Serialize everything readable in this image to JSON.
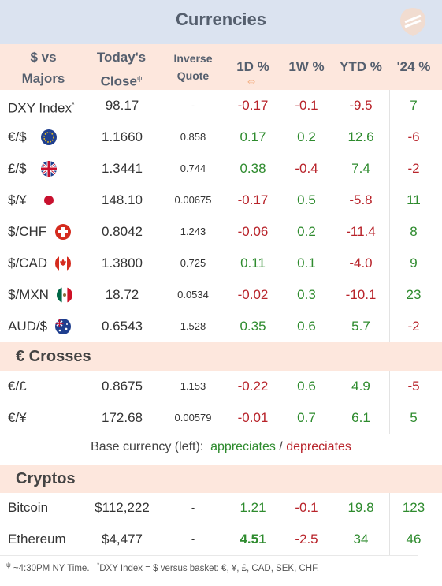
{
  "title": "Currencies",
  "headers": {
    "pair_line1": "$ vs",
    "pair_line2": "Majors",
    "close_line1": "Today's",
    "close_line2": "Close",
    "close_mark": "ψ",
    "inverse_line1": "Inverse",
    "inverse_line2": "Quote",
    "d1": "1D %",
    "w1": "1W %",
    "ytd": "YTD %",
    "y24": "'24 %",
    "sort_icon": "⇔"
  },
  "majors": [
    {
      "label": "DXY Index",
      "mark": "*",
      "flag": "",
      "close": "98.17",
      "inverse": "-",
      "d1": "-0.17",
      "w1": "-0.1",
      "ytd": "-9.5",
      "y24": "7"
    },
    {
      "label": "€/$",
      "mark": "",
      "flag": "eu-flag-icon",
      "close": "1.1660",
      "inverse": "0.858",
      "d1": "0.17",
      "w1": "0.2",
      "ytd": "12.6",
      "y24": "-6"
    },
    {
      "label": "£/$",
      "mark": "",
      "flag": "uk-flag-icon",
      "close": "1.3441",
      "inverse": "0.744",
      "d1": "0.38",
      "w1": "-0.4",
      "ytd": "7.4",
      "y24": "-2"
    },
    {
      "label": "$/¥",
      "mark": "",
      "flag": "japan-flag-icon",
      "close": "148.10",
      "inverse": "0.00675",
      "d1": "-0.17",
      "w1": "0.5",
      "ytd": "-5.8",
      "y24": "11"
    },
    {
      "label": "$/CHF",
      "mark": "",
      "flag": "swiss-flag-icon",
      "close": "0.8042",
      "inverse": "1.243",
      "d1": "-0.06",
      "w1": "0.2",
      "ytd": "-11.4",
      "y24": "8"
    },
    {
      "label": "$/CAD",
      "mark": "",
      "flag": "canada-flag-icon",
      "close": "1.3800",
      "inverse": "0.725",
      "d1": "0.11",
      "w1": "0.1",
      "ytd": "-4.0",
      "y24": "9"
    },
    {
      "label": "$/MXN",
      "mark": "",
      "flag": "mexico-flag-icon",
      "close": "18.72",
      "inverse": "0.0534",
      "d1": "-0.02",
      "w1": "0.3",
      "ytd": "-10.1",
      "y24": "23"
    },
    {
      "label": "AUD/$",
      "mark": "",
      "flag": "australia-flag-icon",
      "close": "0.6543",
      "inverse": "1.528",
      "d1": "0.35",
      "w1": "0.6",
      "ytd": "5.7",
      "y24": "-2"
    }
  ],
  "crosses": {
    "title": "€ Crosses",
    "rows": [
      {
        "label": "€/£",
        "close": "0.8675",
        "inverse": "1.153",
        "d1": "-0.22",
        "w1": "0.6",
        "ytd": "4.9",
        "y24": "-5"
      },
      {
        "label": "€/¥",
        "close": "172.68",
        "inverse": "0.00579",
        "d1": "-0.01",
        "w1": "0.7",
        "ytd": "6.1",
        "y24": "5"
      }
    ]
  },
  "legend": {
    "prefix": "Base currency (left):",
    "appreciates": "appreciates",
    "sep": "/",
    "depreciates": "depreciates"
  },
  "cryptos": {
    "title": "Cryptos",
    "rows": [
      {
        "label": "Bitcoin",
        "close": "$112,222",
        "inverse": "-",
        "d1": "1.21",
        "w1": "-0.1",
        "ytd": "19.8",
        "y24": "123"
      },
      {
        "label": "Ethereum",
        "close": "$4,477",
        "inverse": "-",
        "d1": "4.51",
        "d1_bold": true,
        "w1": "-2.5",
        "ytd": "34",
        "y24": "46"
      }
    ]
  },
  "footer": {
    "mark1": "ψ",
    "text1": "~4:30PM NY Time.",
    "mark2": "*",
    "text2": "DXY Index = $ versus basket: €, ¥, £, CAD, SEK, CHF."
  },
  "colors": {
    "positive": "#2e8b2e",
    "negative": "#b8232a",
    "header_bg": "#fde7dd",
    "title_bg": "#dbe3f0"
  }
}
